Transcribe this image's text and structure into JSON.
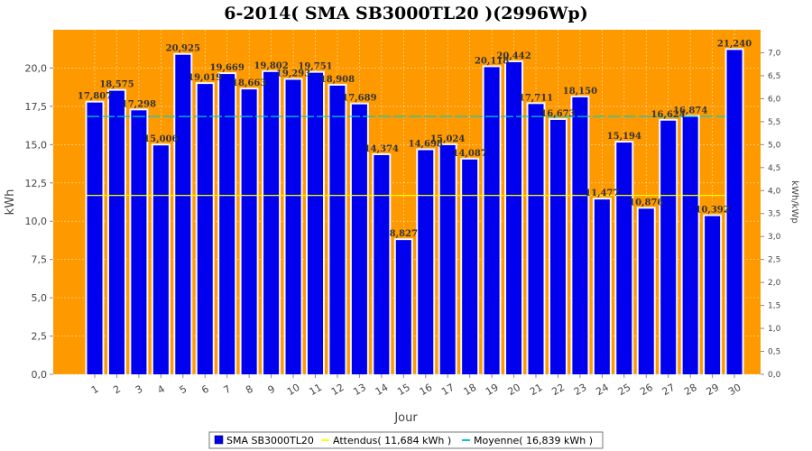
{
  "chart_data": {
    "type": "bar",
    "title": "6-2014( SMA SB3000TL20 )(2996Wp)",
    "xlabel": "Jour",
    "ylabel": "kWh",
    "ylabel_right": "kWh/kWp",
    "ylim": [
      0,
      22.5
    ],
    "ylim_right": [
      0,
      7.5
    ],
    "y_ticks": [
      "0,0",
      "2,5",
      "5,0",
      "7,5",
      "10,0",
      "12,5",
      "15,0",
      "17,5",
      "20,0"
    ],
    "y_ticks_right": [
      "0,0",
      "0,5",
      "1,0",
      "1,5",
      "2,0",
      "2,5",
      "3,0",
      "3,5",
      "4,0",
      "4,5",
      "5,0",
      "5,5",
      "6,0",
      "6,5",
      "7,0"
    ],
    "categories": [
      "1",
      "2",
      "3",
      "4",
      "5",
      "6",
      "7",
      "8",
      "9",
      "10",
      "11",
      "12",
      "13",
      "14",
      "15",
      "16",
      "17",
      "18",
      "19",
      "20",
      "21",
      "22",
      "23",
      "24",
      "25",
      "26",
      "27",
      "28",
      "29",
      "30"
    ],
    "series": [
      {
        "name": "SMA SB3000TL20",
        "color": "#0000ee",
        "values": [
          17.807,
          18.575,
          17.298,
          15.006,
          20.925,
          19.019,
          19.669,
          18.663,
          19.802,
          19.293,
          19.751,
          18.908,
          17.689,
          14.374,
          8.827,
          14.698,
          15.024,
          14.087,
          20.118,
          20.442,
          17.711,
          16.673,
          18.15,
          11.477,
          15.194,
          10.876,
          16.624,
          16.874,
          10.392,
          21.24
        ],
        "labels": [
          "17,807",
          "18,575",
          "17,298",
          "15,006",
          "20,925",
          "19,019",
          "19,669",
          "18,663",
          "19,802",
          "19,293",
          "19,751",
          "18,908",
          "17,689",
          "14,374",
          "8,827",
          "14,698",
          "15,024",
          "14,087",
          "20,118",
          "20,442",
          "17,711",
          "16,673",
          "18,150",
          "11,477",
          "15,194",
          "10,876",
          "16,624",
          "16,874",
          "10,392",
          "21,240"
        ]
      }
    ],
    "reference_lines": [
      {
        "name": "Attendus( 11,684 kWh )",
        "value": 11.684,
        "color": "#ffff00"
      },
      {
        "name": "Moyenne( 16,839 kWh )",
        "value": 16.839,
        "color": "#00cccc"
      }
    ],
    "plot_background": "#ff9900",
    "grid": true,
    "legend_position": "bottom"
  }
}
